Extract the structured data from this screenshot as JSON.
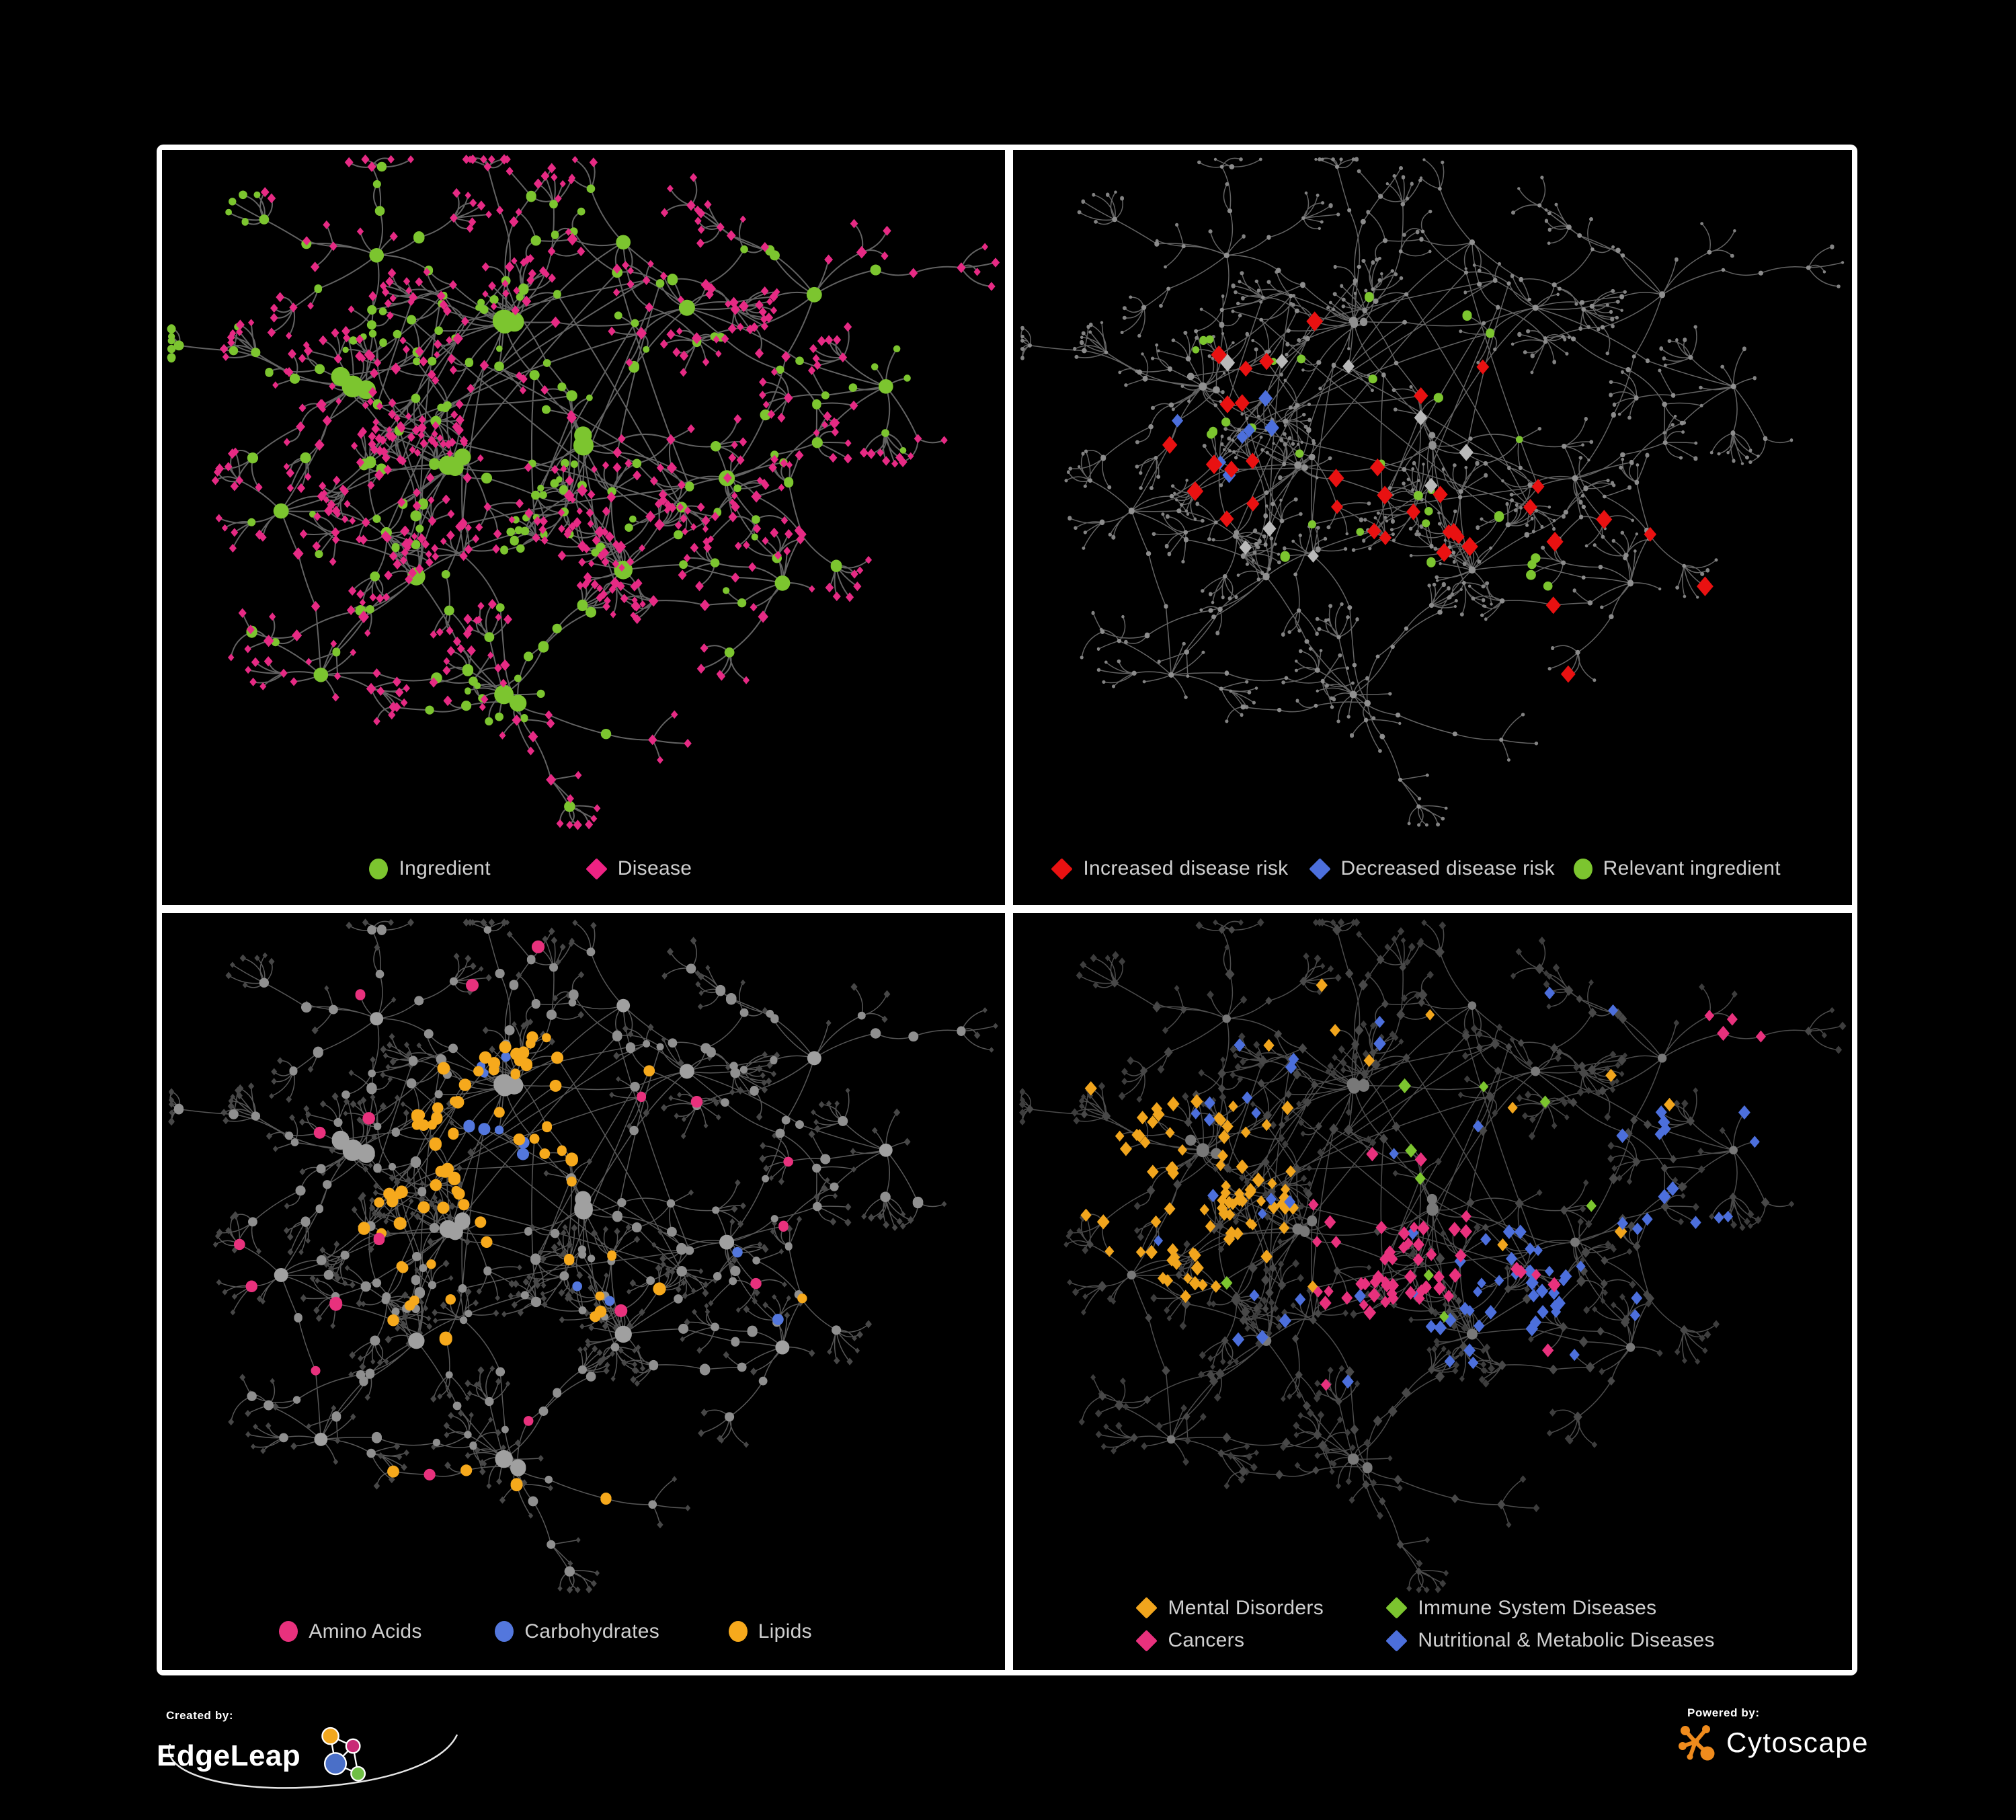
{
  "page": {
    "background": "#000000",
    "frame_color": "#ffffff"
  },
  "footer": {
    "created_by_label": "Created by:",
    "brand_left": "EdgeLeap",
    "powered_by_label": "Powered by:",
    "brand_right": "Cytoscape",
    "edgeleap_node_colors": [
      "#f2a71e",
      "#c92a76",
      "#4a6fc8",
      "#6fbf44"
    ],
    "cytoscape_color": "#ef8b1d"
  },
  "chart_data": {
    "type": "network",
    "description": "Four panels showing the same ingredient-disease association network under different node colorings",
    "generator": {
      "seed": 11,
      "extra_core_edges": 38,
      "clusters": [
        [
          0.4,
          0.23,
          10,
          1.9
        ],
        [
          0.21,
          0.33,
          9,
          1.8
        ],
        [
          0.33,
          0.45,
          8,
          1.5
        ],
        [
          0.5,
          0.42,
          8,
          1.6
        ],
        [
          0.63,
          0.21,
          6,
          1.1
        ],
        [
          0.79,
          0.19,
          5,
          1.0
        ],
        [
          0.29,
          0.62,
          7,
          1.3
        ],
        [
          0.55,
          0.61,
          7,
          1.4
        ],
        [
          0.4,
          0.8,
          8,
          1.5
        ],
        [
          0.12,
          0.52,
          5,
          1.0
        ],
        [
          0.68,
          0.47,
          6,
          1.1
        ],
        [
          0.24,
          0.13,
          5,
          0.9
        ],
        [
          0.55,
          0.11,
          4,
          0.9
        ],
        [
          0.75,
          0.63,
          5,
          1.0
        ],
        [
          0.17,
          0.77,
          4,
          0.9
        ],
        [
          0.88,
          0.33,
          4,
          0.9
        ]
      ],
      "links": [
        [
          0,
          1
        ],
        [
          0,
          2
        ],
        [
          1,
          2
        ],
        [
          2,
          3
        ],
        [
          0,
          3
        ],
        [
          0,
          4
        ],
        [
          4,
          5
        ],
        [
          2,
          6
        ],
        [
          3,
          7
        ],
        [
          7,
          8
        ],
        [
          6,
          8
        ],
        [
          1,
          9
        ],
        [
          3,
          10
        ],
        [
          0,
          12
        ],
        [
          1,
          11
        ],
        [
          10,
          13
        ],
        [
          7,
          13
        ],
        [
          6,
          14
        ],
        [
          9,
          14
        ],
        [
          3,
          4
        ],
        [
          10,
          5
        ],
        [
          4,
          15
        ],
        [
          10,
          15
        ],
        [
          0,
          11
        ],
        [
          2,
          9
        ]
      ]
    },
    "panels": [
      {
        "id": "ingredient-disease",
        "pos": "tl",
        "edge": {
          "color": "#6a6a6a",
          "width": 2.0,
          "opacity": 0.92
        },
        "base": {
          "hub": {
            "shape": "circle",
            "color": "#7cc52f",
            "r": 12
          },
          "mid": {
            "shape": "circle",
            "color": "#7cc52f",
            "r": 7,
            "alt": {
              "shape": "diamond",
              "color": "#e62a84",
              "r": 6.8,
              "frac": 0.52
            }
          },
          "leaf": {
            "shape": "diamond",
            "color": "#e62a84",
            "r": 5.6,
            "alt": {
              "shape": "circle",
              "color": "#7cc52f",
              "r": 5.6,
              "frac": 0.14
            }
          }
        },
        "groups": [],
        "legend": [
          {
            "label": "Ingredient",
            "shape": "circle",
            "color": "#7cc52f",
            "x": 0.246,
            "y": 0.952
          },
          {
            "label": "Disease",
            "shape": "diamond",
            "color": "#ee2283",
            "x": 0.503,
            "y": 0.952
          }
        ]
      },
      {
        "id": "disease-risk",
        "pos": "tr",
        "edge": {
          "color": "#747474",
          "width": 1.5,
          "opacity": 0.85
        },
        "base": {
          "hub": {
            "shape": "circle",
            "color": "#909090",
            "r": 4.6
          },
          "mid": {
            "shape": "circle",
            "color": "#8c8c8c",
            "r": 3.4
          },
          "leaf": {
            "shape": "circle",
            "color": "#838383",
            "r": 2.6
          }
        },
        "groups": [
          {
            "name": "increased-risk",
            "shape": "diamond",
            "color": "#e91111",
            "r": 10.5,
            "count": 30,
            "roles": [
              "mid"
            ],
            "region": {
              "x": 0.42,
              "y": 0.4,
              "rx": 0.27,
              "ry": 0.2
            }
          },
          {
            "name": "increased-risk-outlier",
            "shape": "diamond",
            "color": "#e91111",
            "r": 10.5,
            "count": 6,
            "roles": [
              "mid",
              "leaf"
            ],
            "region": {
              "x": 0.72,
              "y": 0.66,
              "rx": 0.14,
              "ry": 0.16
            }
          },
          {
            "name": "decreased-risk",
            "shape": "diamond",
            "color": "#4c6fdc",
            "r": 9.5,
            "count": 7,
            "roles": [
              "mid"
            ],
            "region": {
              "x": 0.235,
              "y": 0.4,
              "rx": 0.075,
              "ry": 0.1
            }
          },
          {
            "name": "decreased-risk-pair",
            "shape": "diamond",
            "color": "#4c6fdc",
            "r": 9.5,
            "count": 2,
            "roles": [
              "mid",
              "leaf"
            ],
            "region": {
              "x": 0.8,
              "y": 0.185,
              "rx": 0.05,
              "ry": 0.045
            }
          },
          {
            "name": "neutral-risk",
            "shape": "diamond",
            "color": "#b9b9b9",
            "r": 9.5,
            "count": 9,
            "roles": [
              "mid"
            ],
            "region": {
              "x": 0.4,
              "y": 0.44,
              "rx": 0.26,
              "ry": 0.2
            }
          },
          {
            "name": "relevant-ingredient",
            "shape": "circle",
            "color": "#7cc52f",
            "r": 6,
            "count": 26,
            "roles": [
              "mid",
              "leaf"
            ],
            "region": {
              "x": 0.4,
              "y": 0.4,
              "rx": 0.27,
              "ry": 0.22
            }
          },
          {
            "name": "ingredient-trio",
            "shape": "circle",
            "color": "#7cc52f",
            "r": 6.5,
            "count": 4,
            "roles": [
              "mid",
              "leaf"
            ],
            "region": {
              "x": 0.63,
              "y": 0.625,
              "rx": 0.04,
              "ry": 0.04
            }
          }
        ],
        "legend": [
          {
            "label": "Increased disease risk",
            "shape": "diamond",
            "color": "#e91111",
            "x": 0.046,
            "y": 0.952
          },
          {
            "label": "Decreased disease risk",
            "shape": "diamond",
            "color": "#4c6fdc",
            "x": 0.353,
            "y": 0.952
          },
          {
            "label": "Relevant ingredient",
            "shape": "circle",
            "color": "#7cc52f",
            "x": 0.668,
            "y": 0.952
          }
        ]
      },
      {
        "id": "nutrient-classes",
        "pos": "bl",
        "edge": {
          "color": "#8d8d8d",
          "width": 1.5,
          "opacity": 0.62
        },
        "base": {
          "hub": {
            "shape": "circle",
            "color": "#a0a0a0",
            "r": 11
          },
          "mid": {
            "shape": "circle",
            "color": "#8f8f8f",
            "r": 6.6
          },
          "leaf": {
            "shape": "diamond",
            "color": "#474747",
            "r": 4.3
          }
        },
        "groups": [
          {
            "name": "lipids-core",
            "shape": "circle",
            "color": "#f6a91c",
            "r": 8,
            "count": 40,
            "roles": [
              "mid",
              "leaf"
            ],
            "region": {
              "x": 0.41,
              "y": 0.28,
              "rx": 0.13,
              "ry": 0.13
            }
          },
          {
            "name": "lipids-band",
            "shape": "circle",
            "color": "#f6a91c",
            "r": 8,
            "count": 20,
            "roles": [
              "mid",
              "leaf"
            ],
            "region": {
              "x": 0.33,
              "y": 0.47,
              "rx": 0.11,
              "ry": 0.11
            }
          },
          {
            "name": "lipids-scatter",
            "shape": "circle",
            "color": "#f6a91c",
            "r": 8,
            "count": 16,
            "roles": [
              "mid"
            ],
            "region": {
              "x": 0.5,
              "y": 0.55,
              "rx": 0.42,
              "ry": 0.38
            }
          },
          {
            "name": "carbohydrates",
            "shape": "circle",
            "color": "#5377dd",
            "r": 7.5,
            "count": 11,
            "roles": [
              "mid",
              "leaf"
            ],
            "region": {
              "x": 0.43,
              "y": 0.26,
              "rx": 0.09,
              "ry": 0.09
            }
          },
          {
            "name": "carbs-scatter",
            "shape": "circle",
            "color": "#5377dd",
            "r": 7.5,
            "count": 4,
            "roles": [
              "mid",
              "leaf"
            ],
            "region": {
              "x": 0.58,
              "y": 0.57,
              "rx": 0.18,
              "ry": 0.14
            }
          },
          {
            "name": "amino-acids",
            "shape": "circle",
            "color": "#e8317d",
            "r": 8,
            "count": 15,
            "roles": [
              "mid"
            ],
            "region": {
              "x": 0.45,
              "y": 0.58,
              "rx": 0.44,
              "ry": 0.37
            }
          },
          {
            "name": "amino-top",
            "shape": "circle",
            "color": "#e8317d",
            "r": 8,
            "count": 3,
            "roles": [
              "mid",
              "leaf"
            ],
            "region": {
              "x": 0.45,
              "y": 0.12,
              "rx": 0.25,
              "ry": 0.1
            }
          }
        ],
        "legend": [
          {
            "label": "Amino Acids",
            "shape": "circle",
            "color": "#e8317d",
            "x": 0.139,
            "y": 0.949
          },
          {
            "label": "Carbohydrates",
            "shape": "circle",
            "color": "#5377dd",
            "x": 0.395,
            "y": 0.949
          },
          {
            "label": "Lipids",
            "shape": "circle",
            "color": "#f6a91c",
            "x": 0.672,
            "y": 0.949
          }
        ]
      },
      {
        "id": "disease-categories",
        "pos": "br",
        "edge": {
          "color": "#5f5f5f",
          "width": 1.5,
          "opacity": 0.8
        },
        "base": {
          "hub": {
            "shape": "circle",
            "color": "#787878",
            "r": 7
          },
          "mid": {
            "shape": "diamond",
            "color": "#484848",
            "r": 6
          },
          "leaf": {
            "shape": "diamond",
            "color": "#3d3d3d",
            "r": 4.6
          }
        },
        "groups": [
          {
            "name": "mental-disorders",
            "shape": "diamond",
            "color": "#f1a51d",
            "r": 8,
            "count": 80,
            "roles": [
              "mid",
              "leaf"
            ],
            "region": {
              "x": 0.195,
              "y": 0.4,
              "rx": 0.135,
              "ry": 0.155
            }
          },
          {
            "name": "mental-scatter",
            "shape": "diamond",
            "color": "#f1a51d",
            "r": 8,
            "count": 14,
            "roles": [
              "leaf"
            ],
            "region": {
              "x": 0.45,
              "y": 0.3,
              "rx": 0.4,
              "ry": 0.27
            }
          },
          {
            "name": "cancers",
            "shape": "diamond",
            "color": "#e8317d",
            "r": 8,
            "count": 48,
            "roles": [
              "mid",
              "leaf"
            ],
            "region": {
              "x": 0.44,
              "y": 0.46,
              "rx": 0.115,
              "ry": 0.13
            }
          },
          {
            "name": "cancers-scatter",
            "shape": "diamond",
            "color": "#e8317d",
            "r": 8,
            "count": 8,
            "roles": [
              "leaf"
            ],
            "region": {
              "x": 0.6,
              "y": 0.7,
              "rx": 0.3,
              "ry": 0.25
            }
          },
          {
            "name": "cancers-right",
            "shape": "diamond",
            "color": "#e8317d",
            "r": 8,
            "count": 5,
            "roles": [
              "mid",
              "leaf"
            ],
            "region": {
              "x": 0.88,
              "y": 0.18,
              "rx": 0.06,
              "ry": 0.08
            }
          },
          {
            "name": "nutritional-cluster",
            "shape": "diamond",
            "color": "#4c6fdc",
            "r": 8,
            "count": 28,
            "roles": [
              "mid",
              "leaf"
            ],
            "region": {
              "x": 0.595,
              "y": 0.53,
              "rx": 0.075,
              "ry": 0.085
            }
          },
          {
            "name": "nutritional-scatter",
            "shape": "diamond",
            "color": "#4c6fdc",
            "r": 8,
            "count": 55,
            "roles": [
              "leaf"
            ],
            "region": {
              "x": 0.55,
              "y": 0.38,
              "rx": 0.42,
              "ry": 0.36
            }
          },
          {
            "name": "immune-system",
            "shape": "diamond",
            "color": "#7cc52f",
            "r": 8,
            "count": 9,
            "roles": [
              "mid",
              "leaf"
            ],
            "region": {
              "x": 0.42,
              "y": 0.45,
              "rx": 0.3,
              "ry": 0.3
            }
          }
        ],
        "legend": [
          {
            "label": "Mental Disorders",
            "shape": "diamond",
            "color": "#f1a51d",
            "x": 0.147,
            "y": 0.918
          },
          {
            "label": "Immune System Diseases",
            "shape": "diamond",
            "color": "#7cc52f",
            "x": 0.445,
            "y": 0.918
          },
          {
            "label": "Cancers",
            "shape": "diamond",
            "color": "#e8317d",
            "x": 0.147,
            "y": 0.961
          },
          {
            "label": "Nutritional & Metabolic Diseases",
            "shape": "diamond",
            "color": "#4c6fdc",
            "x": 0.445,
            "y": 0.961
          }
        ]
      }
    ]
  }
}
